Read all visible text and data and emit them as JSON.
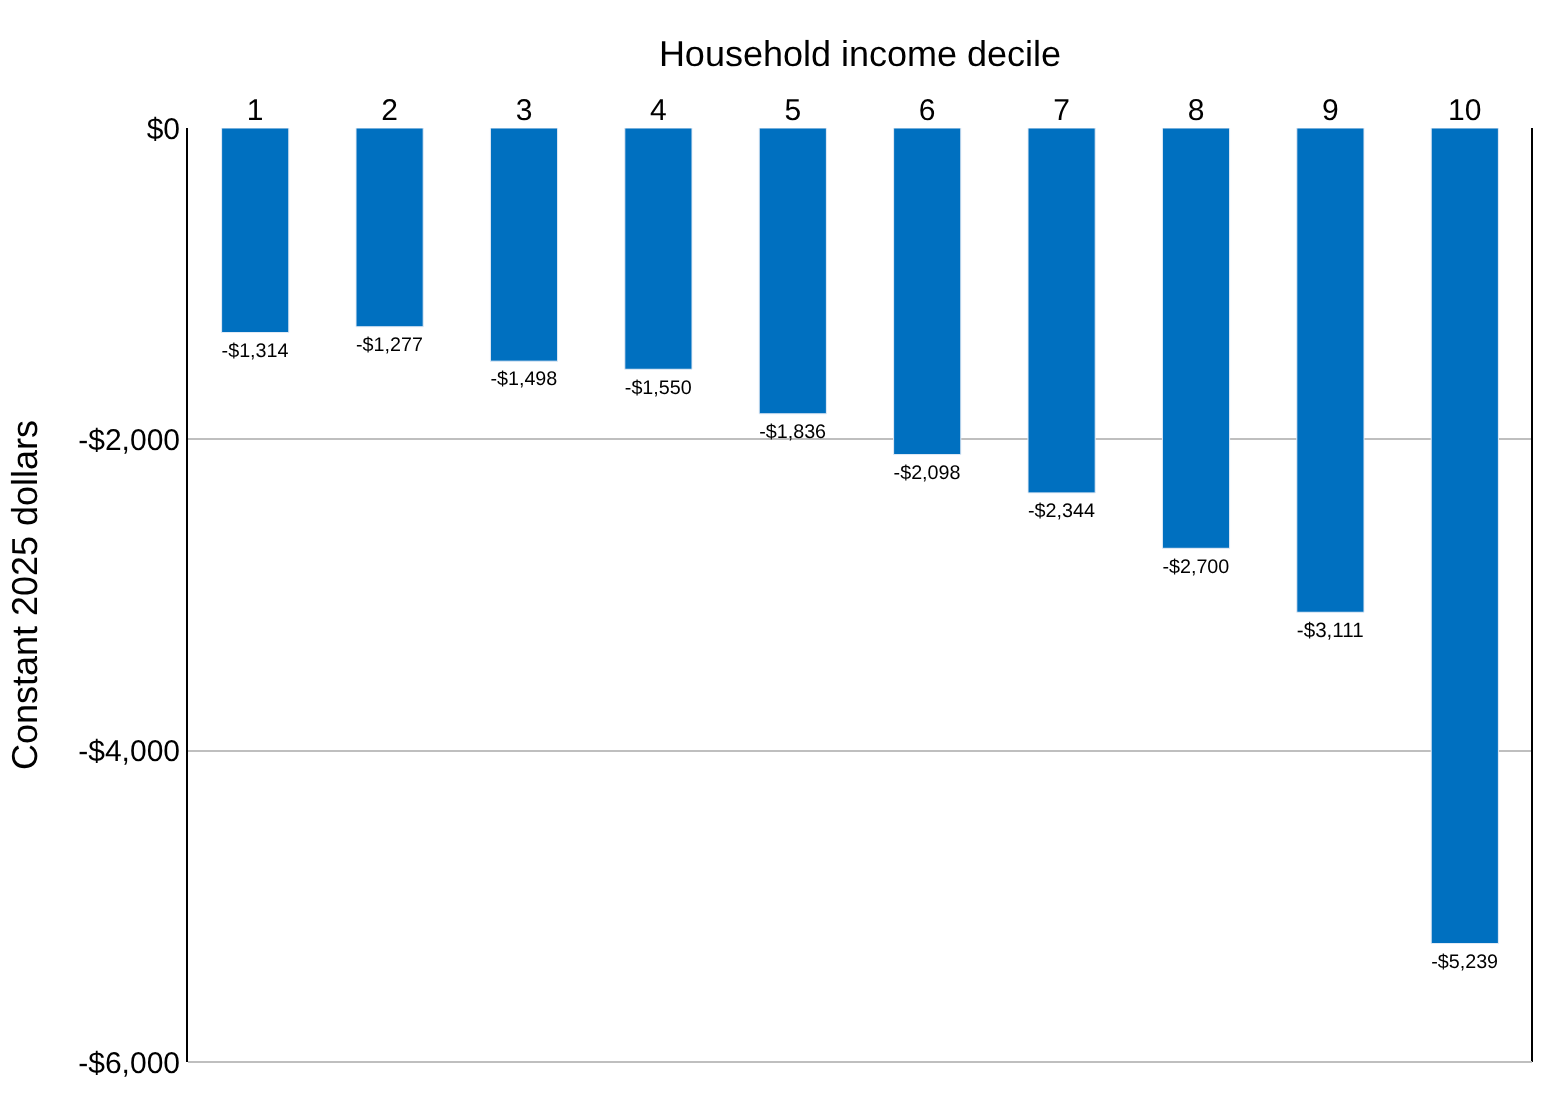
{
  "chart_data": {
    "type": "bar",
    "xlabel": "Household income decile",
    "ylabel": "Constant 2025 dollars",
    "categories": [
      "1",
      "2",
      "3",
      "4",
      "5",
      "6",
      "7",
      "8",
      "9",
      "10"
    ],
    "values": [
      -1314,
      -1277,
      -1498,
      -1550,
      -1836,
      -2098,
      -2344,
      -2700,
      -3111,
      -5239
    ],
    "value_labels": [
      "-$1,314",
      "-$1,277",
      "-$1,498",
      "-$1,550",
      "-$1,836",
      "-$2,098",
      "-$2,344",
      "-$2,700",
      "-$3,111",
      "-$5,239"
    ],
    "color": "#0070c0",
    "ylim": [
      -6000,
      0
    ],
    "yticks": [
      {
        "value": 0,
        "label": "$0"
      },
      {
        "value": -2000,
        "label": "-$2,000"
      },
      {
        "value": -4000,
        "label": "-$4,000"
      },
      {
        "value": -6000,
        "label": "-$6,000"
      }
    ],
    "grid": "y",
    "legend": false
  }
}
